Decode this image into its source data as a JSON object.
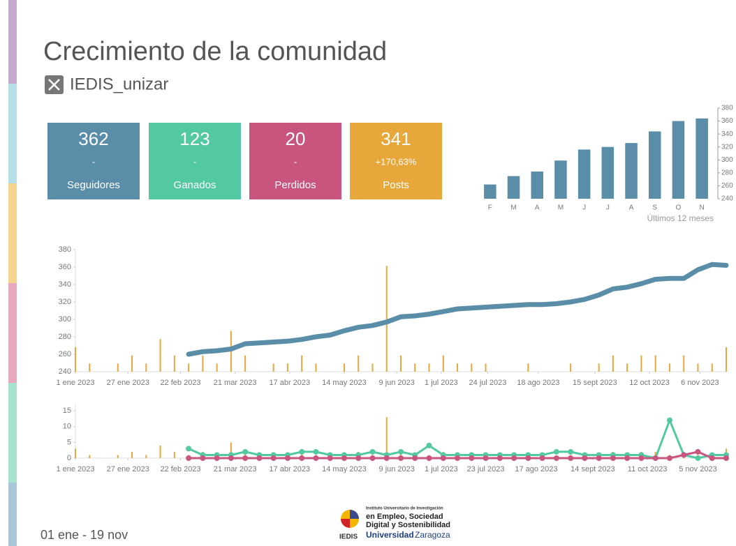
{
  "title": "Crecimiento de la comunidad",
  "handle": "IEDIS_unizar",
  "kpis": [
    {
      "value": 362,
      "change": "-",
      "label": "Seguidores",
      "color": "#5a8ea8"
    },
    {
      "value": 123,
      "change": "-",
      "label": "Ganados",
      "color": "#52c9a0"
    },
    {
      "value": 20,
      "change": "-",
      "label": "Perdidos",
      "color": "#c9557e"
    },
    {
      "value": 341,
      "change": "+170,63%",
      "label": "Posts",
      "color": "#e8a73a"
    }
  ],
  "chart_data": [
    {
      "type": "bar",
      "xlabel": "Últimos 12 meses",
      "categories": [
        "F",
        "M",
        "A",
        "M",
        "J",
        "J",
        "A",
        "S",
        "O",
        "N"
      ],
      "values": [
        262,
        275,
        282,
        299,
        316,
        320,
        326,
        344,
        360,
        364
      ],
      "color": "#5a8ea8",
      "ylim": [
        240,
        380
      ],
      "yticks": [
        240,
        260,
        280,
        300,
        320,
        340,
        360,
        380
      ]
    },
    {
      "type": "line",
      "x": [
        "2023-01-01",
        "2023-01-08",
        "2023-01-15",
        "2023-01-22",
        "2023-01-29",
        "2023-02-05",
        "2023-02-12",
        "2023-02-19",
        "2023-02-26",
        "2023-03-05",
        "2023-03-12",
        "2023-03-19",
        "2023-03-26",
        "2023-04-02",
        "2023-04-09",
        "2023-04-16",
        "2023-04-23",
        "2023-04-30",
        "2023-05-07",
        "2023-05-14",
        "2023-05-21",
        "2023-05-28",
        "2023-06-04",
        "2023-06-11",
        "2023-06-18",
        "2023-06-25",
        "2023-07-02",
        "2023-07-09",
        "2023-07-16",
        "2023-07-23",
        "2023-07-30",
        "2023-08-06",
        "2023-08-13",
        "2023-08-20",
        "2023-08-27",
        "2023-09-03",
        "2023-09-10",
        "2023-09-17",
        "2023-09-24",
        "2023-10-01",
        "2023-10-08",
        "2023-10-15",
        "2023-10-22",
        "2023-10-29",
        "2023-11-05",
        "2023-11-12",
        "2023-11-19"
      ],
      "xlim": [
        "2023-01-01",
        "2023-11-19"
      ],
      "xticks": [
        {
          "value": "2023-01-01",
          "label": "1 ene 2023"
        },
        {
          "value": "2023-01-27",
          "label": "27 ene 2023"
        },
        {
          "value": "2023-02-22",
          "label": "22 feb 2023"
        },
        {
          "value": "2023-03-21",
          "label": "21 mar 2023"
        },
        {
          "value": "2023-04-17",
          "label": "17 abr 2023"
        },
        {
          "value": "2023-05-14",
          "label": "14 may 2023"
        },
        {
          "value": "2023-06-09",
          "label": "9 jun 2023"
        },
        {
          "value": "2023-07-01",
          "label": "1 jul 2023"
        },
        {
          "value": "2023-07-24",
          "label": "24 jul 2023"
        },
        {
          "value": "2023-08-18",
          "label": "18 ago 2023"
        },
        {
          "value": "2023-09-15",
          "label": "15 sept 2023"
        },
        {
          "value": "2023-10-12",
          "label": "12 oct 2023"
        },
        {
          "value": "2023-11-06",
          "label": "6 nov 2023"
        }
      ],
      "ylim": [
        240,
        380
      ],
      "yticks": [
        240,
        260,
        280,
        300,
        320,
        340,
        360,
        380
      ],
      "y2lim": [
        0,
        15
      ],
      "series": [
        {
          "name": "Posts",
          "type": "bar",
          "axis": "y2",
          "color": "#e8a73a",
          "values": [
            3,
            1,
            0,
            1,
            2,
            1,
            4,
            2,
            1,
            2,
            1,
            5,
            2,
            0,
            1,
            1,
            2,
            1,
            0,
            1,
            2,
            1,
            13,
            2,
            1,
            1,
            2,
            1,
            1,
            1,
            0,
            0,
            1,
            0,
            0,
            1,
            0,
            1,
            2,
            1,
            2,
            2,
            1,
            2,
            1,
            1,
            3
          ]
        },
        {
          "name": "Seguidores",
          "color": "#5a8ea8",
          "values": [
            null,
            null,
            null,
            null,
            null,
            null,
            null,
            null,
            260,
            263,
            264,
            266,
            272,
            273,
            274,
            275,
            277,
            280,
            282,
            287,
            291,
            293,
            297,
            303,
            304,
            306,
            309,
            312,
            313,
            314,
            315,
            316,
            317,
            317,
            318,
            320,
            323,
            328,
            335,
            337,
            341,
            346,
            347,
            347,
            357,
            363,
            362
          ]
        }
      ]
    },
    {
      "type": "line",
      "x": [
        "2023-01-01",
        "2023-01-08",
        "2023-01-15",
        "2023-01-22",
        "2023-01-29",
        "2023-02-05",
        "2023-02-12",
        "2023-02-19",
        "2023-02-26",
        "2023-03-05",
        "2023-03-12",
        "2023-03-19",
        "2023-03-26",
        "2023-04-02",
        "2023-04-09",
        "2023-04-16",
        "2023-04-23",
        "2023-04-30",
        "2023-05-07",
        "2023-05-14",
        "2023-05-21",
        "2023-05-28",
        "2023-06-04",
        "2023-06-11",
        "2023-06-18",
        "2023-06-25",
        "2023-07-02",
        "2023-07-09",
        "2023-07-16",
        "2023-07-23",
        "2023-07-30",
        "2023-08-06",
        "2023-08-13",
        "2023-08-20",
        "2023-08-27",
        "2023-09-03",
        "2023-09-10",
        "2023-09-17",
        "2023-09-24",
        "2023-10-01",
        "2023-10-08",
        "2023-10-15",
        "2023-10-22",
        "2023-10-29",
        "2023-11-05",
        "2023-11-12",
        "2023-11-19"
      ],
      "xlim": [
        "2023-01-01",
        "2023-11-19"
      ],
      "xticks": [
        {
          "value": "2023-01-01",
          "label": "1 ene 2023"
        },
        {
          "value": "2023-01-27",
          "label": "27 ene 2023"
        },
        {
          "value": "2023-02-22",
          "label": "22 feb 2023"
        },
        {
          "value": "2023-03-21",
          "label": "21 mar 2023"
        },
        {
          "value": "2023-04-17",
          "label": "17 abr 2023"
        },
        {
          "value": "2023-05-14",
          "label": "14 may 2023"
        },
        {
          "value": "2023-06-09",
          "label": "9 jun 2023"
        },
        {
          "value": "2023-07-01",
          "label": "1 jul 2023"
        },
        {
          "value": "2023-07-23",
          "label": "23 jul 2023"
        },
        {
          "value": "2023-08-17",
          "label": "17 ago 2023"
        },
        {
          "value": "2023-09-14",
          "label": "14 sept 2023"
        },
        {
          "value": "2023-10-11",
          "label": "11 oct 2023"
        },
        {
          "value": "2023-11-05",
          "label": "5 nov 2023"
        }
      ],
      "ylim": [
        0,
        17
      ],
      "yticks": [
        0,
        5,
        10,
        15
      ],
      "series": [
        {
          "name": "Posts",
          "type": "bar",
          "color": "#e8a73a",
          "values": [
            3,
            1,
            0,
            1,
            2,
            1,
            4,
            2,
            1,
            2,
            1,
            5,
            2,
            0,
            1,
            1,
            2,
            1,
            0,
            1,
            2,
            1,
            13,
            2,
            1,
            1,
            2,
            1,
            1,
            1,
            0,
            0,
            1,
            0,
            0,
            1,
            0,
            1,
            2,
            1,
            2,
            2,
            1,
            2,
            1,
            1,
            3
          ]
        },
        {
          "name": "Ganados",
          "color": "#52c9a0",
          "markers": true,
          "values": [
            null,
            null,
            null,
            null,
            null,
            null,
            null,
            null,
            3,
            1,
            1,
            1,
            2,
            1,
            1,
            1,
            2,
            2,
            1,
            1,
            1,
            2,
            1,
            2,
            1,
            4,
            1,
            1,
            1,
            1,
            1,
            1,
            1,
            1,
            2,
            2,
            1,
            1,
            1,
            1,
            1,
            0,
            12,
            1,
            0,
            1,
            1
          ]
        },
        {
          "name": "Perdidos",
          "color": "#c9557e",
          "markers": true,
          "values": [
            null,
            null,
            null,
            null,
            null,
            null,
            null,
            null,
            0,
            0,
            0,
            0,
            0,
            0,
            0,
            0,
            0,
            0,
            0,
            0,
            0,
            0,
            0,
            0,
            0,
            0,
            0,
            0,
            0,
            0,
            0,
            0,
            0,
            0,
            0,
            0,
            0,
            0,
            0,
            0,
            0,
            0,
            0,
            1,
            2,
            0,
            0
          ]
        }
      ]
    }
  ],
  "footer": {
    "period": "01 ene - 19 nov",
    "logo": {
      "line1": "Instituto Universitario de Investigación",
      "line2": "en Empleo, Sociedad",
      "line3": "Digital y Sostenibilidad",
      "acronym": "IEDIS",
      "uni1": "Universidad",
      "uni2": "Zaragoza"
    }
  }
}
